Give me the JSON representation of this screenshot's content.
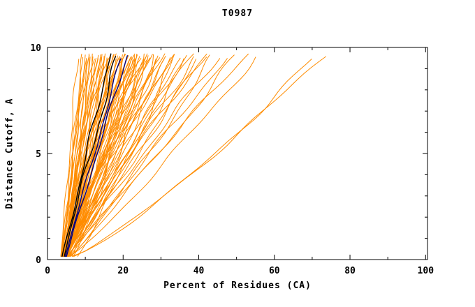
{
  "figure": {
    "background": "#FFFFFF",
    "frame_color": "#000000",
    "tick_color": "#000000",
    "label_color": "#000000"
  },
  "chart_data": {
    "type": "line",
    "title": "T0987",
    "xlabel": "Percent of Residues (CA)",
    "ylabel": "Distance Cutoff, A",
    "xlim": [
      0,
      100.5
    ],
    "ylim": [
      0,
      10
    ],
    "x_ticks": [
      0,
      20,
      40,
      60,
      80,
      100
    ],
    "x_minor_step": 10,
    "y_ticks": [
      0,
      5,
      10
    ],
    "y_minor_step": 1,
    "grid": false,
    "frame": true,
    "legend": "none",
    "curve_y_start": 0.15,
    "curve_y_end": 9.7,
    "curve_format": [
      "x_at_y_start",
      "x_at_y_end",
      "shape_exponent",
      "seed"
    ],
    "series_groups": [
      {
        "name": "model-curves-orange",
        "color": "#FF8C00",
        "width": 1,
        "wobble": 1,
        "curves": [
          [
            3.5,
            8,
            1.0,
            1
          ],
          [
            3.8,
            9,
            0.9,
            2
          ],
          [
            4.0,
            9.5,
            1.1,
            3
          ],
          [
            3.6,
            10,
            0.85,
            4
          ],
          [
            4.2,
            10,
            1.15,
            5
          ],
          [
            3.9,
            10.5,
            1.0,
            6
          ],
          [
            4.4,
            11,
            0.9,
            7
          ],
          [
            3.7,
            11,
            1.2,
            8
          ],
          [
            4.1,
            11.5,
            0.95,
            9
          ],
          [
            4.5,
            12,
            1.05,
            10
          ],
          [
            3.8,
            12,
            0.8,
            11
          ],
          [
            4.3,
            12.5,
            1.1,
            12
          ],
          [
            4.0,
            13,
            0.9,
            13
          ],
          [
            4.6,
            13,
            1.2,
            14
          ],
          [
            3.9,
            13.5,
            1.0,
            15
          ],
          [
            4.2,
            14,
            0.85,
            16
          ],
          [
            4.7,
            14,
            1.15,
            17
          ],
          [
            4.0,
            14.5,
            0.95,
            18
          ],
          [
            4.4,
            15,
            1.05,
            19
          ],
          [
            3.8,
            15,
            1.25,
            20
          ],
          [
            4.5,
            15.5,
            0.9,
            21
          ],
          [
            4.1,
            16,
            1.1,
            22
          ],
          [
            4.8,
            16,
            0.8,
            23
          ],
          [
            4.3,
            16.5,
            1.0,
            24
          ],
          [
            4.6,
            17,
            1.2,
            25
          ],
          [
            4.0,
            17,
            0.9,
            26
          ],
          [
            4.9,
            17.5,
            1.05,
            27
          ],
          [
            4.2,
            18,
            0.85,
            28
          ],
          [
            4.5,
            18,
            1.15,
            29
          ],
          [
            4.8,
            18.5,
            0.95,
            30
          ],
          [
            4.3,
            19,
            1.1,
            31
          ],
          [
            5.0,
            19,
            0.9,
            32
          ],
          [
            4.4,
            19.5,
            1.0,
            33
          ],
          [
            4.7,
            20,
            1.2,
            34
          ],
          [
            4.1,
            20,
            0.85,
            35
          ],
          [
            5.1,
            20.5,
            1.05,
            36
          ],
          [
            4.5,
            21,
            0.9,
            37
          ],
          [
            4.8,
            21,
            1.15,
            38
          ],
          [
            4.2,
            21.5,
            1.0,
            39
          ],
          [
            5.2,
            22,
            0.95,
            40
          ],
          [
            4.6,
            22,
            1.1,
            41
          ],
          [
            4.9,
            22.5,
            0.85,
            42
          ],
          [
            4.3,
            23,
            1.2,
            43
          ],
          [
            5.0,
            23,
            1.0,
            44
          ],
          [
            4.7,
            23.5,
            0.9,
            45
          ],
          [
            5.3,
            24,
            1.05,
            46
          ],
          [
            4.4,
            24,
            1.15,
            47
          ],
          [
            4.8,
            24.5,
            0.95,
            48
          ],
          [
            5.1,
            25,
            1.1,
            49
          ],
          [
            4.5,
            25,
            0.9,
            50
          ],
          [
            4.9,
            25.5,
            1.0,
            51
          ],
          [
            5.4,
            26,
            1.2,
            52
          ],
          [
            4.6,
            26,
            0.85,
            53
          ],
          [
            5.0,
            27,
            1.05,
            54
          ],
          [
            4.7,
            27,
            1.15,
            55
          ],
          [
            5.2,
            28,
            0.95,
            56
          ],
          [
            4.8,
            28,
            1.1,
            57
          ],
          [
            5.5,
            29,
            0.9,
            58
          ],
          [
            4.9,
            29,
            1.0,
            59
          ],
          [
            5.1,
            30,
            1.2,
            60
          ],
          [
            4.6,
            30,
            0.85,
            61
          ],
          [
            5.3,
            31,
            1.05,
            62
          ],
          [
            4.8,
            32,
            1.15,
            63
          ],
          [
            5.6,
            32,
            0.95,
            64
          ],
          [
            5.0,
            33,
            1.1,
            65
          ],
          [
            5.2,
            34,
            0.9,
            66
          ],
          [
            4.9,
            35,
            1.0,
            67
          ],
          [
            5.4,
            36,
            1.2,
            68
          ],
          [
            5.1,
            37,
            0.9,
            69
          ],
          [
            5.7,
            38,
            1.05,
            70
          ],
          [
            5.2,
            39,
            1.1,
            71
          ],
          [
            5.0,
            40,
            0.95,
            72
          ],
          [
            5.5,
            41,
            1.0,
            73
          ],
          [
            5.3,
            42,
            1.15,
            74
          ],
          [
            5.8,
            44,
            0.9,
            75
          ],
          [
            5.4,
            45,
            1.05,
            76
          ],
          [
            5.6,
            47,
            1.0,
            77
          ],
          [
            6.0,
            50,
            0.95,
            78
          ],
          [
            5.7,
            53,
            1.05,
            79
          ],
          [
            6.2,
            55,
            0.9,
            80
          ],
          [
            6.5,
            70,
            0.8,
            81
          ],
          [
            6.8,
            73,
            0.85,
            82
          ],
          [
            7.0,
            26,
            0.9,
            83
          ],
          [
            8.0,
            34,
            0.95,
            84
          ],
          [
            6.5,
            22,
            0.85,
            85
          ]
        ]
      },
      {
        "name": "highlighted-curves-black",
        "color": "#000000",
        "width": 1.4,
        "wobble": 0.8,
        "curves": [
          [
            4.0,
            16.5,
            1.0,
            101
          ],
          [
            4.3,
            18.5,
            1.05,
            102
          ]
        ]
      },
      {
        "name": "highlighted-curves-navy",
        "color": "#000080",
        "width": 1.4,
        "wobble": 0.5,
        "curves": [
          [
            4.6,
            19.5,
            1.0,
            201
          ],
          [
            5.0,
            21.0,
            1.02,
            202
          ]
        ]
      }
    ]
  }
}
